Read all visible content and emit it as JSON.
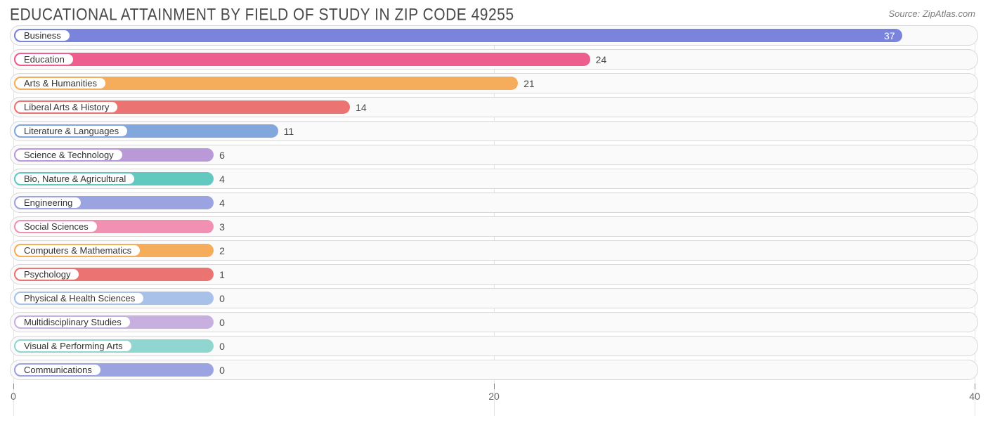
{
  "header": {
    "title": "EDUCATIONAL ATTAINMENT BY FIELD OF STUDY IN ZIP CODE 49255",
    "source": "Source: ZipAtlas.com"
  },
  "chart": {
    "type": "bar-horizontal",
    "xmin": 0,
    "xmax": 40,
    "bar_min_width_pct": 20.8,
    "ticks": [
      0,
      20,
      40
    ],
    "background_color": "#ffffff",
    "track_bg": "#fafafa",
    "track_border": "#d8d8d8",
    "label_fontsize": 13,
    "value_fontsize": 14,
    "title_fontsize": 21,
    "title_color": "#4a4a4a",
    "rows": [
      {
        "label": "Business",
        "value": 37,
        "color": "#7a84dc",
        "value_inside": true
      },
      {
        "label": "Education",
        "value": 24,
        "color": "#ed5e8e",
        "value_inside": false
      },
      {
        "label": "Arts & Humanities",
        "value": 21,
        "color": "#f5ac5b",
        "value_inside": false
      },
      {
        "label": "Liberal Arts & History",
        "value": 14,
        "color": "#eb7371",
        "value_inside": false
      },
      {
        "label": "Literature & Languages",
        "value": 11,
        "color": "#82a7dd",
        "value_inside": false
      },
      {
        "label": "Science & Technology",
        "value": 6,
        "color": "#b999d8",
        "value_inside": false
      },
      {
        "label": "Bio, Nature & Agricultural",
        "value": 4,
        "color": "#63c8c0",
        "value_inside": false
      },
      {
        "label": "Engineering",
        "value": 4,
        "color": "#9ba3e1",
        "value_inside": false
      },
      {
        "label": "Social Sciences",
        "value": 3,
        "color": "#f290b4",
        "value_inside": false
      },
      {
        "label": "Computers & Mathematics",
        "value": 2,
        "color": "#f5ac5b",
        "value_inside": false
      },
      {
        "label": "Psychology",
        "value": 1,
        "color": "#eb7371",
        "value_inside": false
      },
      {
        "label": "Physical & Health Sciences",
        "value": 0,
        "color": "#a7c1e8",
        "value_inside": false
      },
      {
        "label": "Multidisciplinary Studies",
        "value": 0,
        "color": "#c7b0e0",
        "value_inside": false
      },
      {
        "label": "Visual & Performing Arts",
        "value": 0,
        "color": "#8fd6d0",
        "value_inside": false
      },
      {
        "label": "Communications",
        "value": 0,
        "color": "#9ba3e1",
        "value_inside": false
      }
    ]
  }
}
